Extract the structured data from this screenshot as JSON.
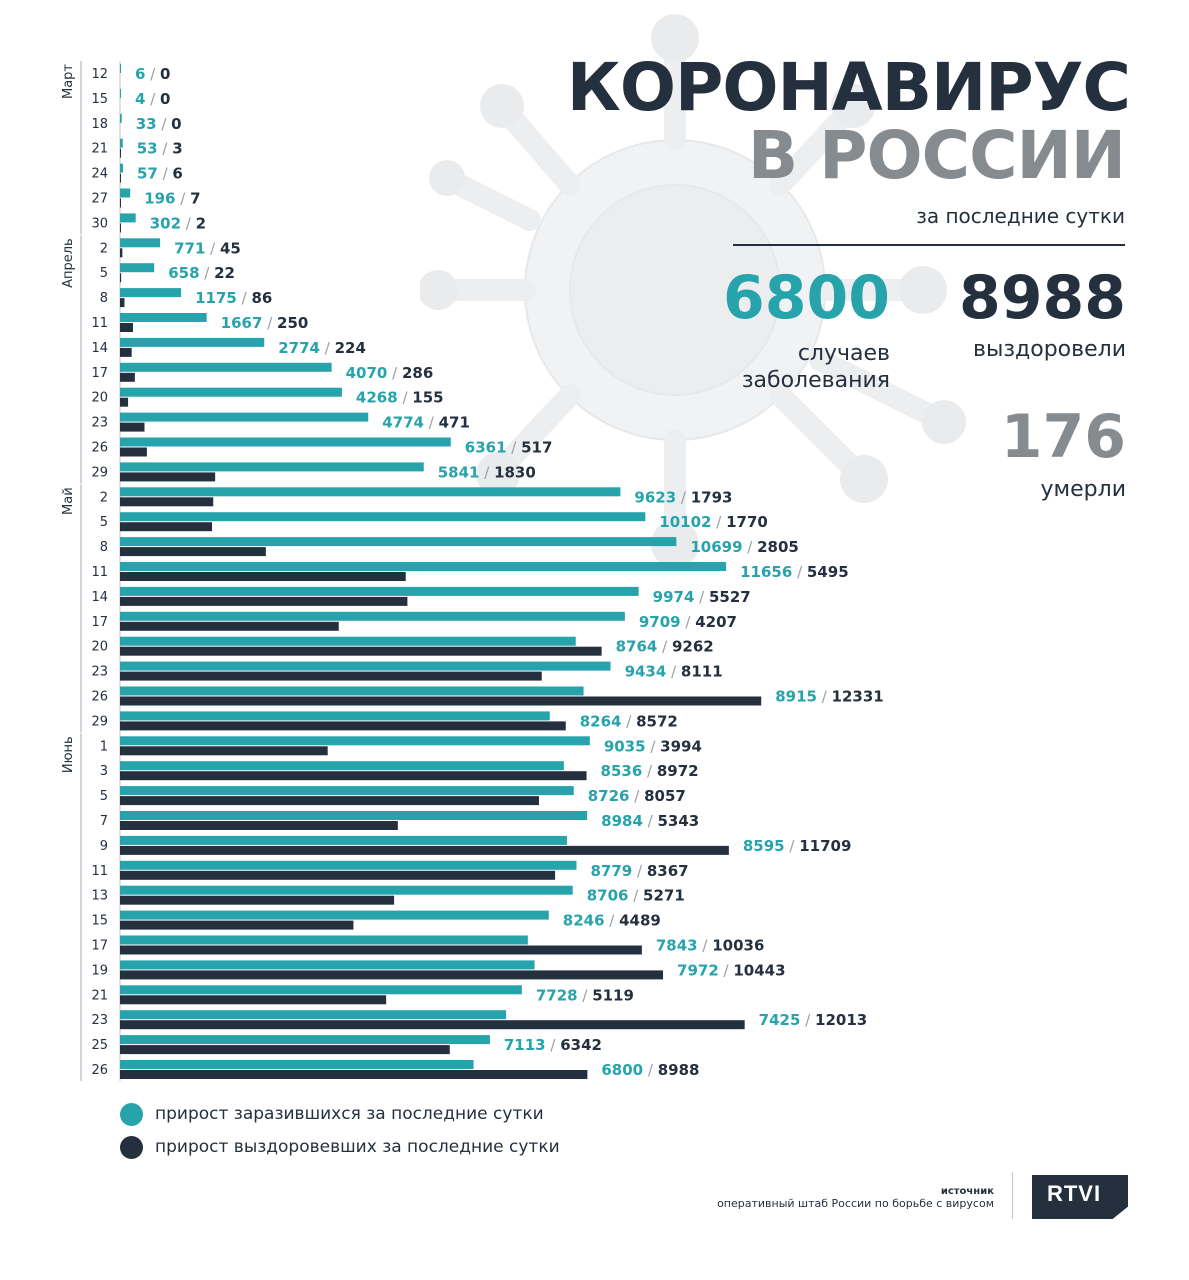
{
  "header": {
    "title_line1": "КОРОНАВИРУС",
    "title_line2": "В РОССИИ",
    "subtitle": "за последние сутки"
  },
  "stats": {
    "cases": {
      "value": "6800",
      "label_line1": "случаев",
      "label_line2": "заболевания"
    },
    "recovered": {
      "value": "8988",
      "label": "выздоровели"
    },
    "deaths": {
      "value": "176",
      "label": "умерли"
    }
  },
  "legend": {
    "infected": "прирост заразившихся за последние сутки",
    "recovered": "прирост выздоровевших за последние сутки"
  },
  "source": {
    "title": "источник",
    "text": "оперативный штаб России по борьбе с вирусом"
  },
  "logo": "RTVI",
  "colors": {
    "infected": "#27a3ac",
    "recovered": "#25303f",
    "title_gray": "#868b90"
  },
  "chart_data": {
    "type": "bar",
    "orientation": "horizontal",
    "months": [
      {
        "label": "Март",
        "start": 0,
        "end": 6
      },
      {
        "label": "Апрель",
        "start": 7,
        "end": 16
      },
      {
        "label": "Май",
        "start": 17,
        "end": 26
      },
      {
        "label": "Июнь",
        "start": 27,
        "end": 40
      }
    ],
    "categories": [
      "12",
      "15",
      "18",
      "21",
      "24",
      "27",
      "30",
      "2",
      "5",
      "8",
      "11",
      "14",
      "17",
      "20",
      "23",
      "26",
      "29",
      "2",
      "5",
      "8",
      "11",
      "14",
      "17",
      "20",
      "23",
      "26",
      "29",
      "1",
      "3",
      "5",
      "7",
      "9",
      "11",
      "13",
      "15",
      "17",
      "19",
      "21",
      "23",
      "25",
      "26"
    ],
    "series": [
      {
        "name": "прирост заразившихся за последние сутки",
        "values": [
          6,
          4,
          33,
          53,
          57,
          196,
          302,
          771,
          658,
          1175,
          1667,
          2774,
          4070,
          4268,
          4774,
          6361,
          5841,
          9623,
          10102,
          10699,
          11656,
          9974,
          9709,
          8764,
          9434,
          8915,
          8264,
          9035,
          8536,
          8726,
          8984,
          8595,
          8779,
          8706,
          8246,
          7843,
          7972,
          7728,
          7425,
          7113,
          6800
        ]
      },
      {
        "name": "прирост выздоровевших за последние сутки",
        "values": [
          0,
          0,
          0,
          3,
          6,
          7,
          2,
          45,
          22,
          86,
          250,
          224,
          286,
          155,
          471,
          517,
          1830,
          1793,
          1770,
          2805,
          5495,
          5527,
          4207,
          9262,
          8111,
          12331,
          8572,
          3994,
          8972,
          8057,
          5343,
          11709,
          8367,
          5271,
          4489,
          10036,
          10443,
          5119,
          12013,
          6342,
          8988
        ]
      }
    ]
  }
}
